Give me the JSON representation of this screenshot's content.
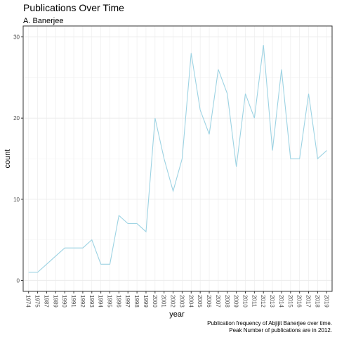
{
  "chart_data": {
    "type": "line",
    "title": "Publications Over Time",
    "subtitle": "A. Banerjee",
    "xlabel": "year",
    "ylabel": "count",
    "caption": [
      "Publication frequency of Abjijit Banerjee over time.",
      "Peak Number of publications are in 2012."
    ],
    "ylim": [
      0,
      30
    ],
    "yticks": [
      0,
      10,
      20,
      30
    ],
    "grid": true,
    "colors": {
      "line": "#9dd3e3",
      "grid_major": "#ebebeb",
      "grid_minor": "#f5f5f5",
      "panel_border": "#333333"
    },
    "categories": [
      "1974",
      "1975",
      "1987",
      "1989",
      "1990",
      "1991",
      "1992",
      "1993",
      "1994",
      "1995",
      "1996",
      "1997",
      "1998",
      "1999",
      "2000",
      "2001",
      "2002",
      "2003",
      "2004",
      "2005",
      "2006",
      "2007",
      "2008",
      "2009",
      "2010",
      "2011",
      "2012",
      "2013",
      "2014",
      "2015",
      "2016",
      "2017",
      "2018",
      "2019"
    ],
    "series": [
      {
        "values": [
          1,
          1,
          2,
          3,
          4,
          4,
          4,
          5,
          2,
          2,
          8,
          7,
          7,
          6,
          20,
          15,
          11,
          15,
          28,
          21,
          18,
          26,
          23,
          14,
          23,
          20,
          29,
          16,
          26,
          15,
          15,
          23,
          15,
          16
        ]
      }
    ]
  }
}
